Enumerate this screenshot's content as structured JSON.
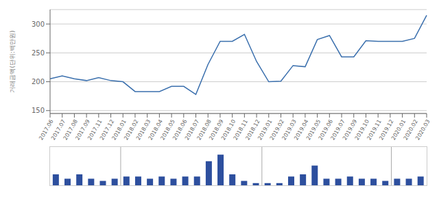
{
  "chart_data": [
    {
      "type": "line",
      "categories": [
        "2017.06",
        "2017.07",
        "2017.08",
        "2017.09",
        "2017.11",
        "2017.12",
        "2018.01",
        "2018.02",
        "2018.03",
        "2018.04",
        "2018.05",
        "2018.06",
        "2018.07",
        "2018.08",
        "2018.09",
        "2018.10",
        "2018.11",
        "2018.12",
        "2019.01",
        "2019.02",
        "2019.03",
        "2019.04",
        "2019.05",
        "2019.06",
        "2019.07",
        "2019.09",
        "2019.10",
        "2019.11",
        "2019.12",
        "2020.01",
        "2020.02",
        "2020.03"
      ],
      "values": [
        205,
        210,
        205,
        202,
        207,
        202,
        200,
        183,
        183,
        183,
        192,
        192,
        178,
        230,
        270,
        270,
        282,
        235,
        200,
        201,
        228,
        226,
        273,
        280,
        243,
        243,
        271,
        270,
        270,
        270,
        275,
        315
      ],
      "color": "#3a6fad",
      "ylabel": "거래금액(단위:백만원)",
      "ylim": [
        145,
        325
      ],
      "yticks": [
        150,
        200,
        250,
        300
      ],
      "grid": true
    },
    {
      "type": "bar",
      "categories": [
        "2017.06",
        "2017.07",
        "2017.08",
        "2017.09",
        "2017.11",
        "2017.12",
        "2018.01",
        "2018.02",
        "2018.03",
        "2018.04",
        "2018.05",
        "2018.06",
        "2018.07",
        "2018.08",
        "2018.09",
        "2018.10",
        "2018.11",
        "2018.12",
        "2019.01",
        "2019.02",
        "2019.03",
        "2019.04",
        "2019.05",
        "2019.06",
        "2019.07",
        "2019.09",
        "2019.10",
        "2019.11",
        "2019.12",
        "2020.01",
        "2020.02",
        "2020.03"
      ],
      "values": [
        5,
        3,
        5,
        3,
        2,
        3,
        4,
        4,
        3,
        4,
        3,
        4,
        4,
        11,
        14,
        5,
        2,
        1,
        1,
        1,
        4,
        5,
        9,
        3,
        3,
        4,
        3,
        3,
        2,
        3,
        3,
        4
      ],
      "color": "#2d4f9e",
      "ylim": [
        0,
        17.5
      ],
      "tick_labels": false,
      "dividers": [
        "2018.01",
        "2019.01",
        "2020.01"
      ]
    }
  ]
}
